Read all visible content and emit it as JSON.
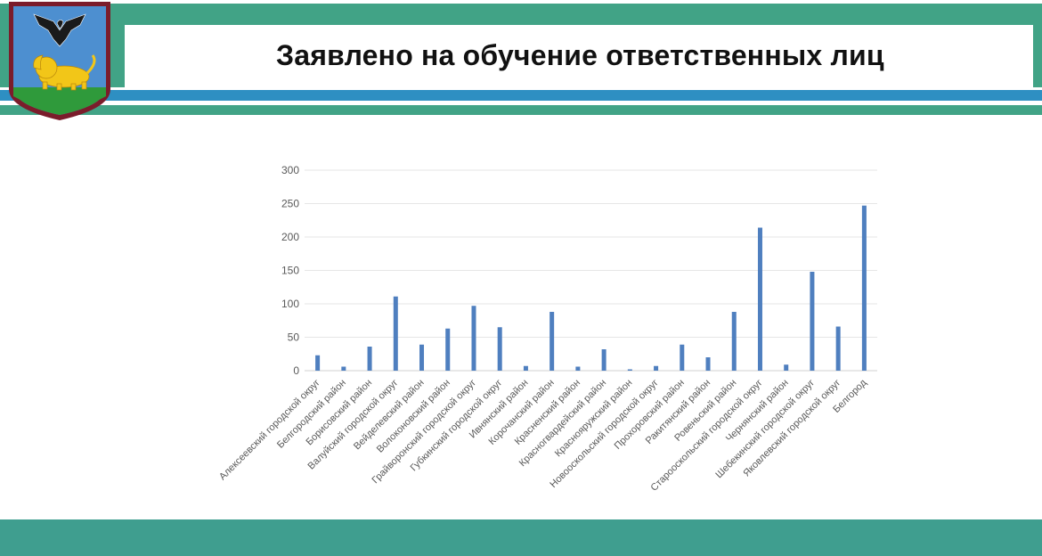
{
  "header": {
    "title": "Заявлено на обучение ответственных лиц"
  },
  "colors": {
    "header_green": "#41a386",
    "stripe_blue": "#2e8fc2",
    "footer_teal": "#3f9e8f",
    "bar_blue": "#4f7fbf",
    "shield_frame": "#7b1c2b",
    "shield_sky": "#4d8fd0",
    "shield_field": "#2f9a3b",
    "lion_gold": "#f2c618"
  },
  "icons": {
    "emblem": "belgorod-coat-of-arms-icon"
  },
  "chart_data": {
    "type": "bar",
    "categories": [
      "Алексеевский городской округ",
      "Белгородский район",
      "Борисовский район",
      "Валуйский городской округ",
      "Вейделевский район",
      "Волоконовский район",
      "Грайворонский городской округ",
      "Губкинский городской округ",
      "Ивнянский район",
      "Корочанский район",
      "Красненский район",
      "Красногвардейский район",
      "Краснояружский район",
      "Новооскольский городской округ",
      "Прохоровский район",
      "Ракитянский район",
      "Ровеньский район",
      "Старооскольский городской округ",
      "Чернянский район",
      "Шебекинский городской округ",
      "Яковлевский городской округ",
      "Белгород"
    ],
    "values": [
      23,
      6,
      36,
      111,
      39,
      63,
      97,
      65,
      7,
      88,
      6,
      32,
      2,
      7,
      39,
      20,
      88,
      214,
      9,
      148,
      66,
      247
    ],
    "ylim": [
      0,
      300
    ],
    "yticks": [
      0,
      50,
      100,
      150,
      200,
      250,
      300
    ],
    "grid": true,
    "legend": "none",
    "title": "",
    "xlabel": "",
    "ylabel": ""
  }
}
